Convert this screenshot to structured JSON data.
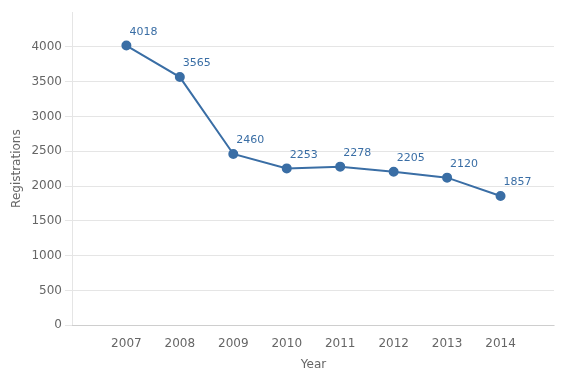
{
  "chart_data": {
    "type": "line",
    "x": [
      2007,
      2008,
      2009,
      2010,
      2011,
      2012,
      2013,
      2014
    ],
    "values": [
      4018,
      3565,
      2460,
      2253,
      2278,
      2205,
      2120,
      1857
    ],
    "color": "#3A6EA5",
    "marker": "circle",
    "xlabel": "Year",
    "ylabel": "Registrations",
    "xlim": [
      2006,
      2015
    ],
    "xticks": [
      2007,
      2008,
      2009,
      2010,
      2011,
      2012,
      2013,
      2014
    ],
    "ylim": [
      0,
      4500
    ],
    "yticks": [
      0,
      500,
      1000,
      1500,
      2000,
      2500,
      3000,
      3500,
      4000
    ],
    "grid": "y",
    "data_labels": true
  }
}
